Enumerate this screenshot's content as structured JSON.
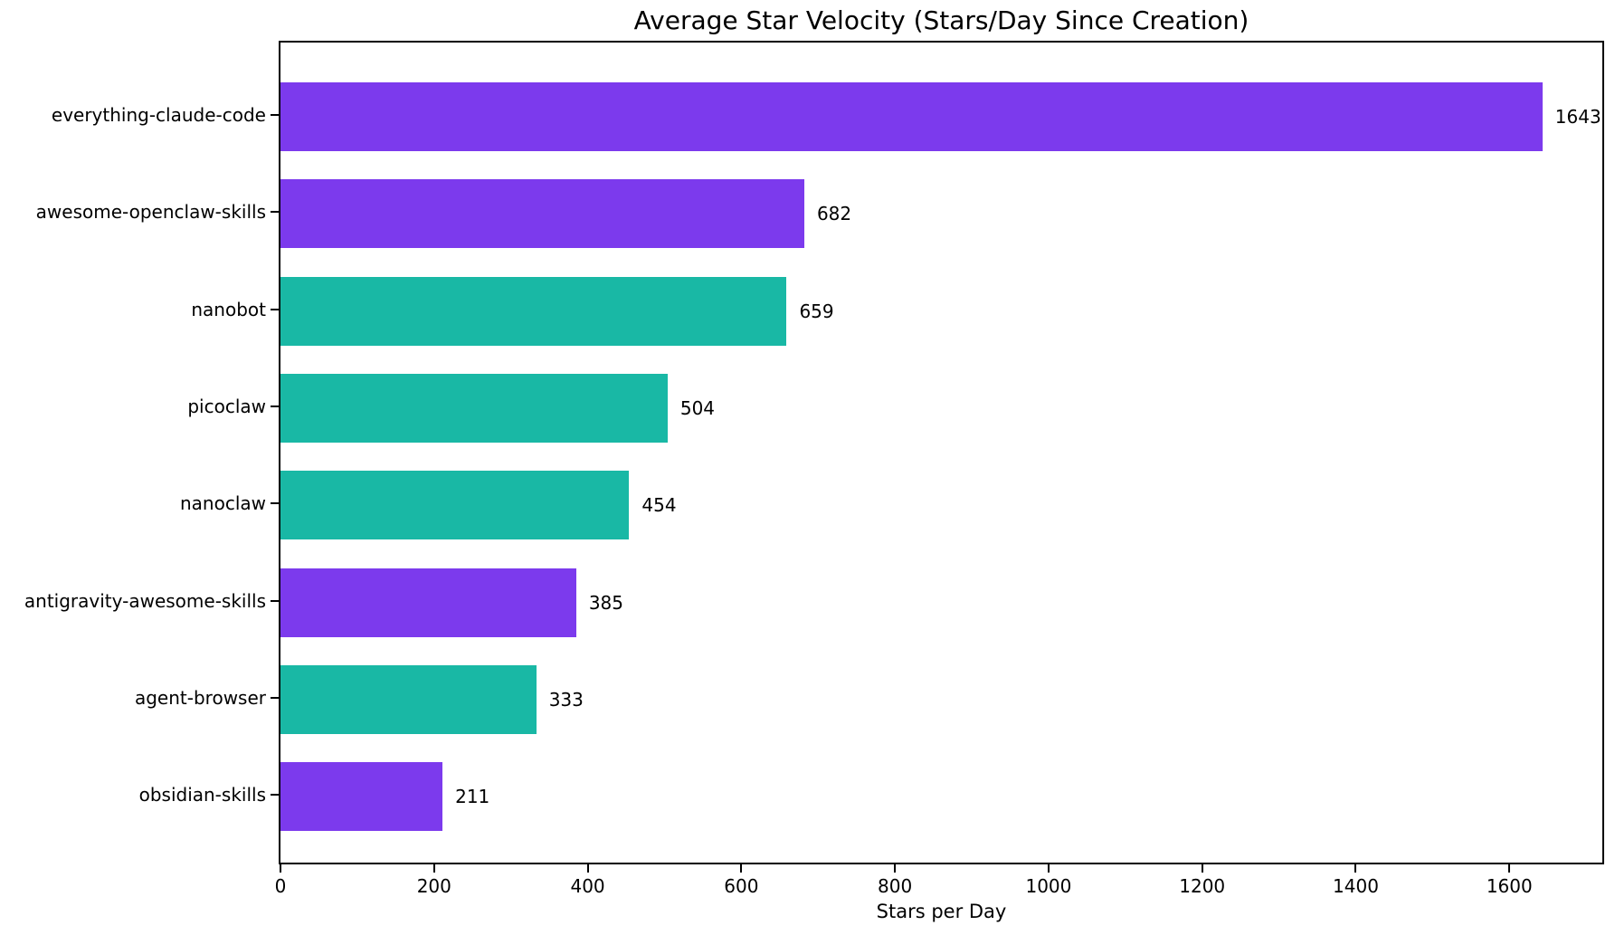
{
  "chart_data": {
    "type": "bar",
    "orientation": "horizontal",
    "title": "Average Star Velocity (Stars/Day Since Creation)",
    "xlabel": "Stars per Day",
    "ylabel": "",
    "categories": [
      "everything-claude-code",
      "awesome-openclaw-skills",
      "nanobot",
      "picoclaw",
      "nanoclaw",
      "antigravity-awesome-skills",
      "agent-browser",
      "obsidian-skills"
    ],
    "values": [
      1643,
      682,
      659,
      504,
      454,
      385,
      333,
      211
    ],
    "value_labels": [
      "1643",
      "682",
      "659",
      "504",
      "454",
      "385",
      "333",
      "211"
    ],
    "bar_colors": [
      "#7C3AED",
      "#7C3AED",
      "#19B8A5",
      "#19B8A5",
      "#19B8A5",
      "#7C3AED",
      "#19B8A5",
      "#7C3AED"
    ],
    "xticks": [
      0,
      200,
      400,
      600,
      800,
      1000,
      1200,
      1400,
      1600
    ],
    "xlim": [
      0,
      1721
    ],
    "grid": false,
    "legend": null,
    "colors": {
      "purple": "#7C3AED",
      "teal": "#19B8A5",
      "text": "#000000",
      "spine": "#000000",
      "background": "#FFFFFF"
    }
  }
}
